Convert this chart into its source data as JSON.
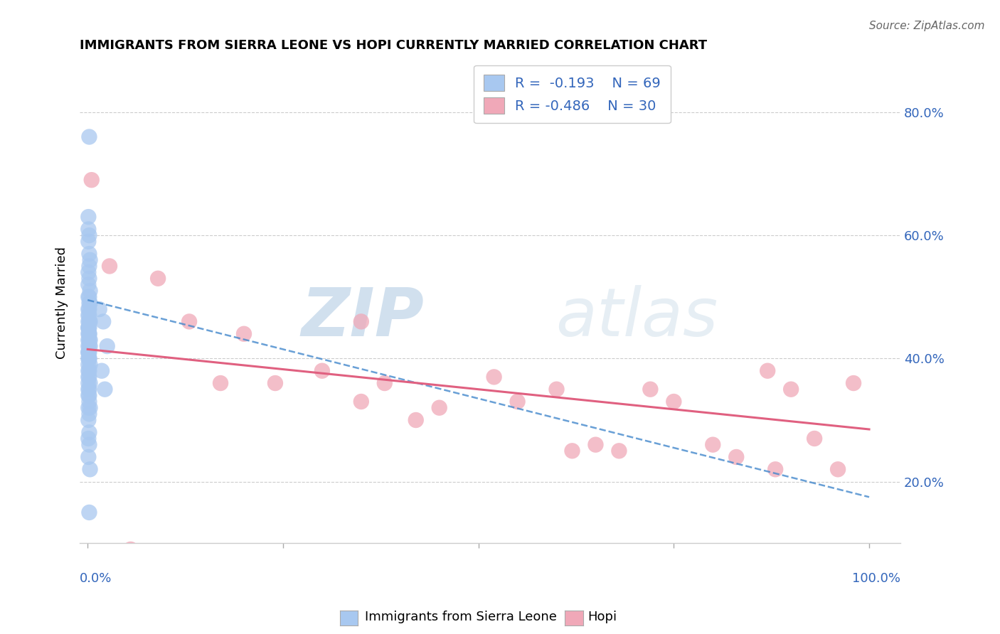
{
  "title": "IMMIGRANTS FROM SIERRA LEONE VS HOPI CURRENTLY MARRIED CORRELATION CHART",
  "source": "Source: ZipAtlas.com",
  "ylabel": "Currently Married",
  "ylim": [
    0.1,
    0.88
  ],
  "xlim": [
    -0.01,
    1.04
  ],
  "yticks": [
    0.2,
    0.4,
    0.6,
    0.8
  ],
  "ytick_labels": [
    "20.0%",
    "40.0%",
    "60.0%",
    "80.0%"
  ],
  "legend_blue_label": "R =  -0.193    N = 69",
  "legend_pink_label": "R = -0.486    N = 30",
  "blue_color": "#a8c8f0",
  "pink_color": "#f0a8b8",
  "blue_line_color": "#4488cc",
  "pink_line_color": "#e06080",
  "watermark_zip": "ZIP",
  "watermark_atlas": "atlas",
  "blue_dots_x": [
    0.002,
    0.001,
    0.001,
    0.002,
    0.001,
    0.002,
    0.003,
    0.002,
    0.001,
    0.002,
    0.001,
    0.003,
    0.002,
    0.001,
    0.002,
    0.003,
    0.001,
    0.002,
    0.001,
    0.002,
    0.001,
    0.002,
    0.003,
    0.001,
    0.002,
    0.001,
    0.002,
    0.001,
    0.002,
    0.003,
    0.001,
    0.002,
    0.001,
    0.002,
    0.003,
    0.001,
    0.002,
    0.001,
    0.002,
    0.001,
    0.002,
    0.001,
    0.003,
    0.001,
    0.002,
    0.001,
    0.002,
    0.001,
    0.003,
    0.002,
    0.001,
    0.002,
    0.001,
    0.002,
    0.003,
    0.001,
    0.002,
    0.001,
    0.002,
    0.001,
    0.002,
    0.001,
    0.003,
    0.002,
    0.015,
    0.02,
    0.025,
    0.018,
    0.022
  ],
  "blue_dots_y": [
    0.76,
    0.63,
    0.61,
    0.6,
    0.59,
    0.57,
    0.56,
    0.55,
    0.54,
    0.53,
    0.52,
    0.51,
    0.5,
    0.5,
    0.49,
    0.49,
    0.48,
    0.48,
    0.47,
    0.47,
    0.46,
    0.46,
    0.46,
    0.45,
    0.45,
    0.45,
    0.44,
    0.44,
    0.44,
    0.43,
    0.43,
    0.43,
    0.42,
    0.42,
    0.42,
    0.41,
    0.41,
    0.41,
    0.4,
    0.4,
    0.4,
    0.39,
    0.39,
    0.38,
    0.38,
    0.37,
    0.37,
    0.36,
    0.36,
    0.35,
    0.35,
    0.34,
    0.34,
    0.33,
    0.32,
    0.32,
    0.31,
    0.3,
    0.28,
    0.27,
    0.26,
    0.24,
    0.22,
    0.15,
    0.48,
    0.46,
    0.42,
    0.38,
    0.35
  ],
  "pink_dots_x": [
    0.005,
    0.028,
    0.055,
    0.09,
    0.13,
    0.17,
    0.2,
    0.24,
    0.3,
    0.35,
    0.38,
    0.45,
    0.52,
    0.55,
    0.6,
    0.65,
    0.68,
    0.72,
    0.75,
    0.8,
    0.83,
    0.87,
    0.9,
    0.93,
    0.96,
    0.98,
    0.35,
    0.42,
    0.62,
    0.88
  ],
  "pink_dots_y": [
    0.69,
    0.55,
    0.09,
    0.53,
    0.46,
    0.36,
    0.44,
    0.36,
    0.38,
    0.46,
    0.36,
    0.32,
    0.37,
    0.33,
    0.35,
    0.26,
    0.25,
    0.35,
    0.33,
    0.26,
    0.24,
    0.38,
    0.35,
    0.27,
    0.22,
    0.36,
    0.33,
    0.3,
    0.25,
    0.22
  ],
  "blue_trendline_x": [
    0.0,
    1.0
  ],
  "blue_trendline_y": [
    0.495,
    0.175
  ],
  "pink_trendline_x": [
    0.0,
    1.0
  ],
  "pink_trendline_y": [
    0.415,
    0.285
  ]
}
